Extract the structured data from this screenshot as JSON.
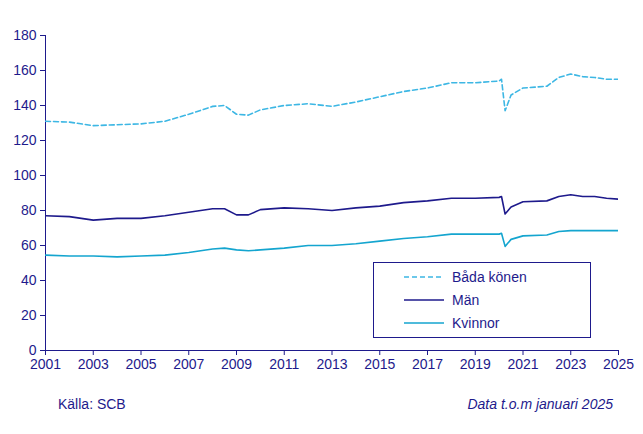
{
  "chart_data": {
    "type": "line",
    "source": "Källa: SCB",
    "note": "Data t.o.m januari 2025",
    "x": [
      2001,
      2002,
      2003,
      2004,
      2005,
      2006,
      2007,
      2008,
      2008.5,
      2009,
      2009.5,
      2010,
      2011,
      2012,
      2013,
      2014,
      2015,
      2016,
      2017,
      2018,
      2019,
      2020,
      2020.1,
      2020.25,
      2020.5,
      2021,
      2022,
      2022.5,
      2023,
      2023.5,
      2024,
      2024.5,
      2025
    ],
    "series": [
      {
        "name": "Båda könen",
        "color": "#3db7e4",
        "line_style": "dashed",
        "values": [
          131,
          130.5,
          128.5,
          129,
          129.5,
          131,
          135,
          139.5,
          140,
          135,
          134.5,
          137.5,
          140,
          141,
          139.5,
          142,
          145,
          148,
          150,
          153,
          153,
          154,
          155,
          137,
          146,
          150,
          151,
          156,
          158,
          156.5,
          156,
          155,
          155
        ]
      },
      {
        "name": "Män",
        "color": "#1e1a8c",
        "line_style": "solid",
        "values": [
          77,
          76.5,
          74.5,
          75.5,
          75.5,
          77,
          79,
          81,
          81,
          77.5,
          77.5,
          80.5,
          81.5,
          81,
          80,
          81.5,
          82.5,
          84.5,
          85.5,
          87,
          87,
          87.5,
          88,
          78,
          82,
          85,
          85.5,
          88,
          89,
          88,
          88,
          87,
          86.5
        ]
      },
      {
        "name": "Kvinnor",
        "color": "#14a5cf",
        "line_style": "solid",
        "values": [
          54.5,
          54,
          54,
          53.5,
          54,
          54.5,
          56,
          58,
          58.5,
          57.5,
          57,
          57.5,
          58.5,
          60,
          60,
          61,
          62.5,
          64,
          65,
          66.5,
          66.5,
          66.5,
          67,
          59.5,
          63.5,
          65.5,
          66,
          68,
          68.5,
          68.5,
          68.5,
          68.5,
          68.5
        ]
      }
    ],
    "xlim": [
      2001,
      2025
    ],
    "xticks": [
      2001,
      2003,
      2005,
      2007,
      2009,
      2011,
      2013,
      2015,
      2017,
      2019,
      2021,
      2023,
      2025
    ],
    "ylim": [
      0,
      180
    ],
    "yticks": [
      0,
      20,
      40,
      60,
      80,
      100,
      120,
      140,
      160,
      180
    ],
    "grid": false,
    "legend": "lower right"
  }
}
